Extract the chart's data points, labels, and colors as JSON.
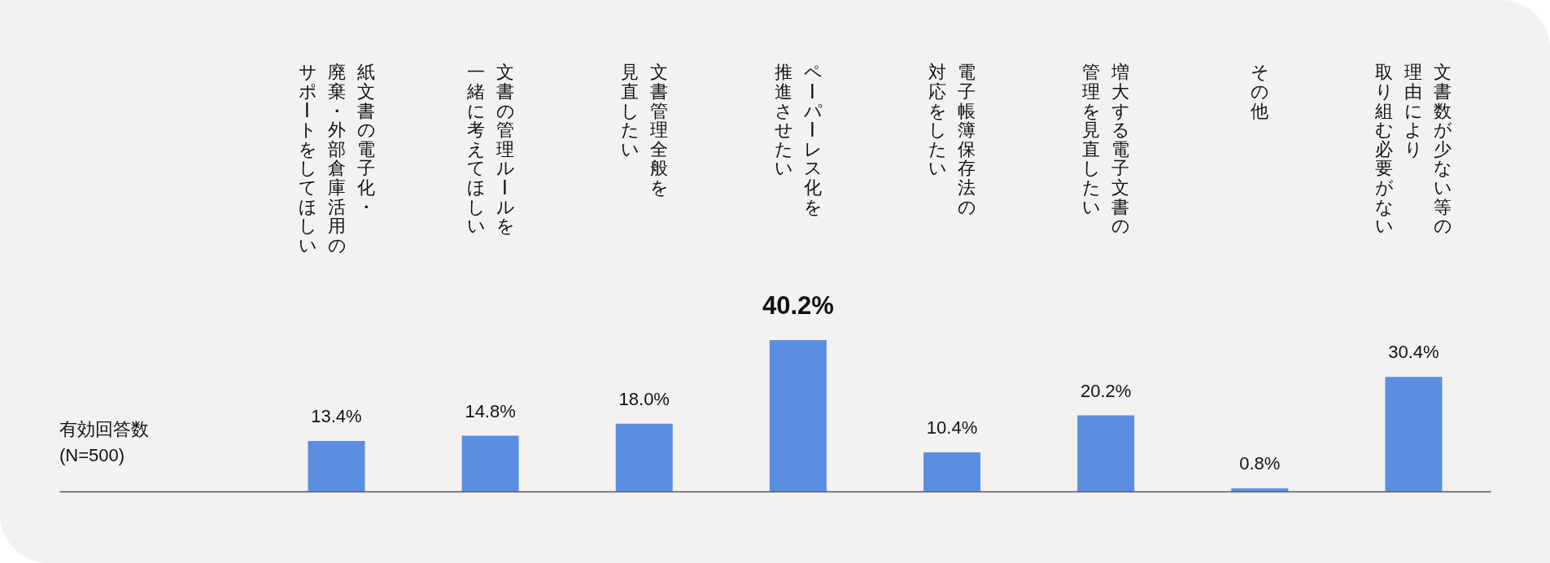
{
  "chart_data": {
    "type": "bar",
    "categories": [
      "紙文書の電子化・廃棄・外部倉庫活用のサポートをしてほしい",
      "文書の管理ルールを一緒に考えてほしい",
      "文書管理全般を見直したい",
      "ペーパーレス化を推進させたい",
      "電子帳簿保存法の対応をしたい",
      "増大する電子文書の管理を見直したい",
      "その他",
      "文書数が少ない等の理由により取り組む必要がない"
    ],
    "values": [
      13.4,
      14.8,
      18.0,
      40.2,
      10.4,
      20.2,
      0.8,
      30.4
    ],
    "value_labels": [
      "13.4%",
      "14.8%",
      "18.0%",
      "40.2%",
      "10.4%",
      "20.2%",
      "0.8%",
      "30.4%"
    ],
    "color": "#5b8ee0",
    "annotations": [
      "有効回答数\n(N=500)"
    ]
  }
}
